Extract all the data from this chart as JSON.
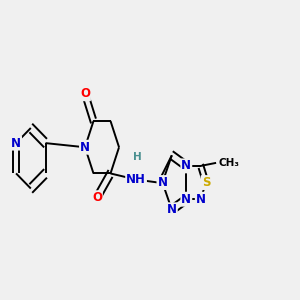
{
  "background_color": "#f0f0f0",
  "figsize": [
    3.0,
    3.0
  ],
  "dpi": 100,
  "atom_colors": {
    "C": "#000000",
    "N": "#0000cc",
    "O": "#ff0000",
    "S": "#ccaa00",
    "H": "#4a9090"
  },
  "bond_color": "#000000",
  "bond_width": 1.4,
  "font_size": 8.5
}
